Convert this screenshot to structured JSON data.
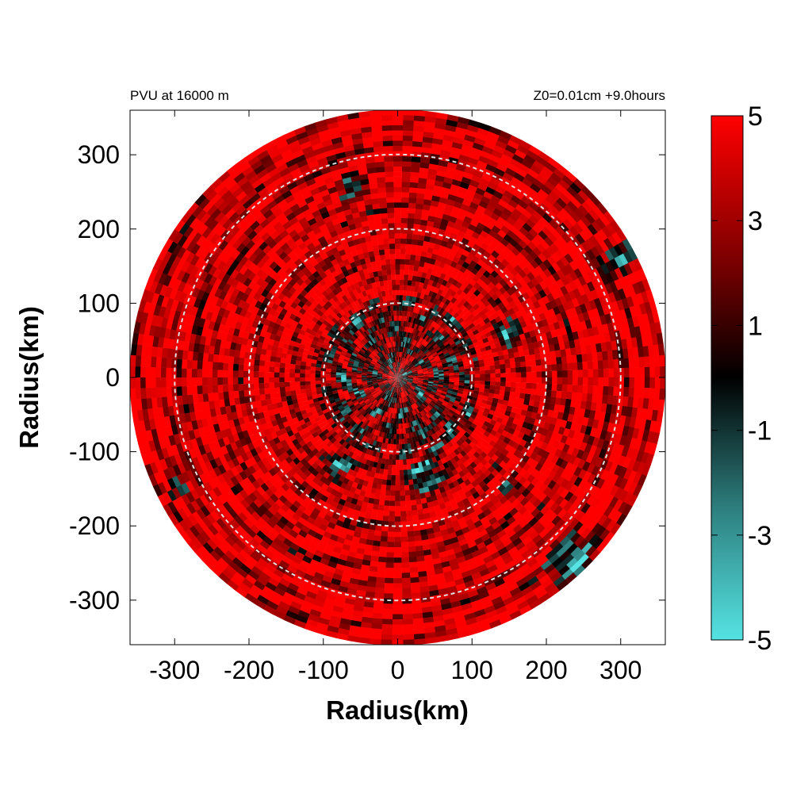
{
  "chart_data": {
    "type": "heatmap",
    "subtype": "polar",
    "title_left": "PVU at 16000 m",
    "title_right": "Z0=0.01cm  +9.0hours",
    "xlabel": "Radius(km)",
    "ylabel": "Radius(km)",
    "xlim": [
      -360,
      360
    ],
    "ylim": [
      -360,
      360
    ],
    "x_ticks": [
      -300,
      -200,
      -100,
      0,
      100,
      200,
      300
    ],
    "y_ticks": [
      300,
      200,
      100,
      0,
      -100,
      -200,
      -300
    ],
    "x_tick_labels": [
      "-300",
      "-200",
      "-100",
      "0",
      "100",
      "200",
      "300"
    ],
    "y_tick_labels": [
      "300",
      "200",
      "100",
      "0",
      "-100",
      "-200",
      "-300"
    ],
    "domain_radius": 360,
    "reference_circles": [
      100,
      200,
      300
    ],
    "colorbar": {
      "min": -5,
      "max": 5,
      "ticks": [
        5,
        3,
        1,
        -1,
        -3,
        -5
      ],
      "tick_labels": [
        "5",
        "3",
        "1",
        "-1",
        "-3",
        "-5"
      ],
      "colors": [
        "#55e3e3",
        "#2e7f7f",
        "#000000",
        "#7a0000",
        "#ff0000"
      ]
    },
    "grid": false,
    "legend_position": "right"
  }
}
